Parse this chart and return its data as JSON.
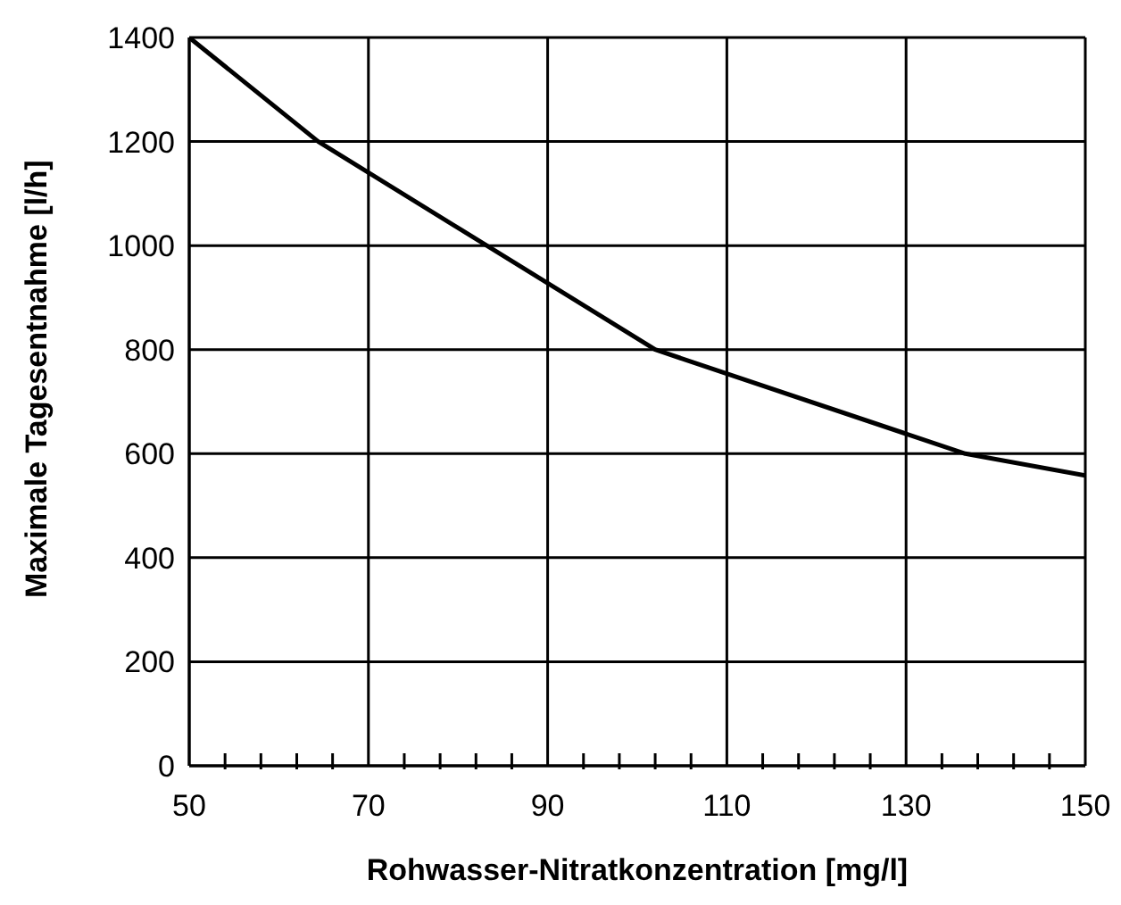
{
  "chart_data": {
    "type": "line",
    "xlabel": "Rohwasser-Nitratkonzentration [mg/l]",
    "ylabel": "Maximale Tagesentnahme [l/h]",
    "x": [
      50,
      64.4,
      102,
      136.6,
      150
    ],
    "series": [
      {
        "color": "#000000",
        "values": [
          1400,
          1200,
          800,
          600,
          558
        ]
      }
    ],
    "xlim": [
      50,
      150
    ],
    "xticks": [
      50,
      {
        "value": 54,
        "label": null
      },
      {
        "value": 58,
        "label": null
      },
      {
        "value": 62,
        "label": null
      },
      {
        "value": 66,
        "label": null
      },
      70,
      {
        "value": 74,
        "label": null
      },
      {
        "value": 78,
        "label": null
      },
      {
        "value": 82,
        "label": null
      },
      {
        "value": 86,
        "label": null
      },
      90,
      {
        "value": 94,
        "label": null
      },
      {
        "value": 98,
        "label": null
      },
      {
        "value": 102,
        "label": null
      },
      {
        "value": 106,
        "label": null
      },
      110,
      {
        "value": 114,
        "label": null
      },
      {
        "value": 118,
        "label": null
      },
      {
        "value": 122,
        "label": null
      },
      {
        "value": 126,
        "label": null
      },
      130,
      {
        "value": 134,
        "label": null
      },
      {
        "value": 138,
        "label": null
      },
      {
        "value": 142,
        "label": null
      },
      {
        "value": 146,
        "label": null
      },
      150
    ],
    "ylim": [
      0,
      1400
    ],
    "yticks": [
      0,
      200,
      400,
      600,
      800,
      1000,
      1200,
      1400
    ],
    "grid": true,
    "legend": false,
    "marker": "none",
    "line_style": "solid"
  }
}
